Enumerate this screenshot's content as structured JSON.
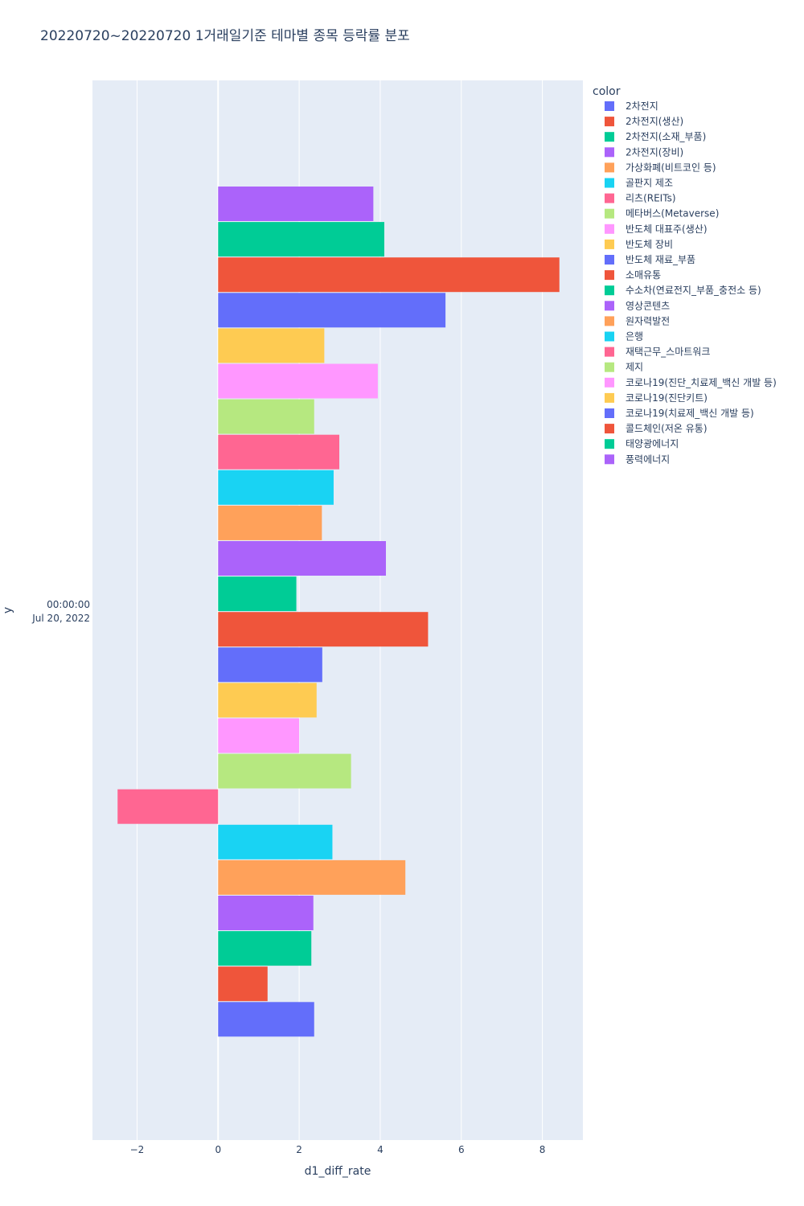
{
  "chart_data": {
    "type": "bar",
    "orientation": "horizontal",
    "barmode": "group",
    "title": "20220720~20220720 1거래일기준 테마별 종목 등락률 분포",
    "xlabel": "d1_diff_rate",
    "ylabel": "y",
    "xlim": [
      -3.1,
      9.0
    ],
    "xticks": [
      -2,
      0,
      2,
      4,
      6,
      8
    ],
    "xtick_labels": [
      "−2",
      "0",
      "2",
      "4",
      "6",
      "8"
    ],
    "y_category_label": [
      "00:00:00",
      "Jul 20, 2022"
    ],
    "legend_title": "color",
    "grid": true,
    "series": [
      {
        "name": "2차전지",
        "color": "#636efa",
        "value": 2.37
      },
      {
        "name": "2차전지(생산)",
        "color": "#EF553B",
        "value": 1.22
      },
      {
        "name": "2차전지(소재_부품)",
        "color": "#00cc96",
        "value": 2.3
      },
      {
        "name": "2차전지(장비)",
        "color": "#ab63fa",
        "value": 2.35
      },
      {
        "name": "가상화폐(비트코인 등)",
        "color": "#FFA15A",
        "value": 4.62
      },
      {
        "name": "골판지 제조",
        "color": "#19d3f3",
        "value": 2.82
      },
      {
        "name": "리츠(REITs)",
        "color": "#FF6692",
        "value": -2.48
      },
      {
        "name": "메타버스(Metaverse)",
        "color": "#B6E880",
        "value": 3.28
      },
      {
        "name": "반도체 대표주(생산)",
        "color": "#FF97FF",
        "value": 2.0
      },
      {
        "name": "반도체 장비",
        "color": "#FECB52",
        "value": 2.43
      },
      {
        "name": "반도체 재료_부품",
        "color": "#636efa",
        "value": 2.57
      },
      {
        "name": "소매유통",
        "color": "#EF553B",
        "value": 5.18
      },
      {
        "name": "수소차(연료전지_부품_충전소 등)",
        "color": "#00cc96",
        "value": 1.93
      },
      {
        "name": "영상콘텐츠",
        "color": "#ab63fa",
        "value": 4.14
      },
      {
        "name": "원자력발전",
        "color": "#FFA15A",
        "value": 2.56
      },
      {
        "name": "은행",
        "color": "#19d3f3",
        "value": 2.85
      },
      {
        "name": "재택근무_스마트워크",
        "color": "#FF6692",
        "value": 2.99
      },
      {
        "name": "제지",
        "color": "#B6E880",
        "value": 2.37
      },
      {
        "name": "코로나19(진단_치료제_백신 개발 등)",
        "color": "#FF97FF",
        "value": 3.94
      },
      {
        "name": "코로나19(진단키트)",
        "color": "#FECB52",
        "value": 2.62
      },
      {
        "name": "코로나19(치료제_백신 개발 등)",
        "color": "#636efa",
        "value": 5.61
      },
      {
        "name": "콜드체인(저온 유통)",
        "color": "#EF553B",
        "value": 8.42
      },
      {
        "name": "태양광에너지",
        "color": "#00cc96",
        "value": 4.1
      },
      {
        "name": "풍력에너지",
        "color": "#ab63fa",
        "value": 3.83
      }
    ]
  }
}
